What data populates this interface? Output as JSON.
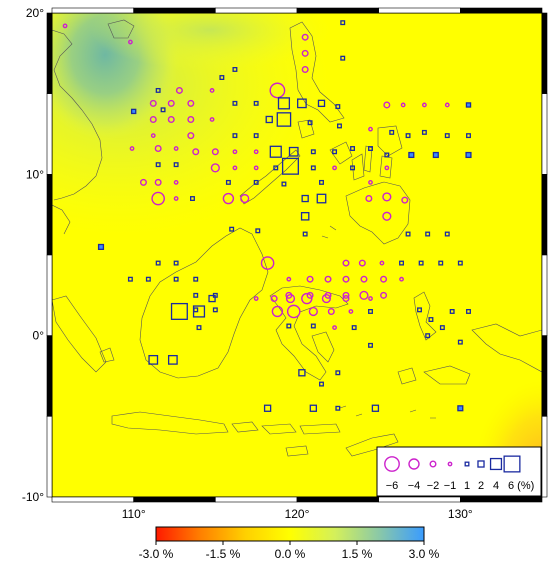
{
  "map": {
    "lon_range": [
      105,
      135
    ],
    "lat_range": [
      -10,
      20
    ],
    "lon_ticks": [
      {
        "value": 110,
        "label": "110°"
      },
      {
        "value": 120,
        "label": "120°"
      },
      {
        "value": 130,
        "label": "130°"
      }
    ],
    "lat_ticks": [
      {
        "value": 20,
        "label": "20°"
      },
      {
        "value": 10,
        "label": "10°"
      },
      {
        "value": 0,
        "label": "0°"
      },
      {
        "value": -10,
        "label": "-10°"
      }
    ],
    "field_colors": {
      "yellow": "#ffff00",
      "green": "#c6e85a",
      "teal": "#7bbf9c",
      "orange": "#ffcc22"
    },
    "positive_marker_color": "#1a2aa0",
    "negative_marker_color": "#cc22cc",
    "positive_marker_shape": "square",
    "negative_marker_shape": "circle"
  },
  "stations": [
    {
      "lon": 105.8,
      "lat": 19.2,
      "v": -1
    },
    {
      "lon": 109.8,
      "lat": 18.2,
      "v": -1
    },
    {
      "lon": 122.8,
      "lat": 19.4,
      "v": 1
    },
    {
      "lon": 120.5,
      "lat": 18.5,
      "v": -2
    },
    {
      "lon": 120.5,
      "lat": 17.5,
      "v": -2
    },
    {
      "lon": 120.5,
      "lat": 16.5,
      "v": -2
    },
    {
      "lon": 122.8,
      "lat": 17.2,
      "v": 1
    },
    {
      "lon": 116.2,
      "lat": 16.5,
      "v": 1
    },
    {
      "lon": 115.4,
      "lat": 16.0,
      "v": 1
    },
    {
      "lon": 112.8,
      "lat": 15.2,
      "v": -2
    },
    {
      "lon": 114.8,
      "lat": 15.2,
      "v": -1
    },
    {
      "lon": 118.8,
      "lat": 15.2,
      "v": -6
    },
    {
      "lon": 111.2,
      "lat": 14.4,
      "v": -2
    },
    {
      "lon": 112.3,
      "lat": 14.4,
      "v": -2
    },
    {
      "lon": 113.5,
      "lat": 14.4,
      "v": -2
    },
    {
      "lon": 111.5,
      "lat": 15.2,
      "v": 1
    },
    {
      "lon": 111.8,
      "lat": 14.0,
      "v": 1
    },
    {
      "lon": 110.0,
      "lat": 13.9,
      "v": 1.2
    },
    {
      "lon": 119.2,
      "lat": 14.4,
      "v": 4
    },
    {
      "lon": 120.3,
      "lat": 14.4,
      "v": 3
    },
    {
      "lon": 121.5,
      "lat": 14.4,
      "v": 2
    },
    {
      "lon": 117.5,
      "lat": 14.4,
      "v": 1
    },
    {
      "lon": 116.2,
      "lat": 14.4,
      "v": 1
    },
    {
      "lon": 122.5,
      "lat": 14.2,
      "v": 1
    },
    {
      "lon": 111.2,
      "lat": 13.4,
      "v": -2
    },
    {
      "lon": 112.3,
      "lat": 13.4,
      "v": -2
    },
    {
      "lon": 113.5,
      "lat": 13.4,
      "v": -2
    },
    {
      "lon": 114.8,
      "lat": 13.4,
      "v": -1
    },
    {
      "lon": 119.2,
      "lat": 13.4,
      "v": 5
    },
    {
      "lon": 118.3,
      "lat": 13.4,
      "v": 2
    },
    {
      "lon": 120.8,
      "lat": 13.2,
      "v": 1
    },
    {
      "lon": 122.6,
      "lat": 13.0,
      "v": 1
    },
    {
      "lon": 111.2,
      "lat": 12.4,
      "v": -1
    },
    {
      "lon": 113.5,
      "lat": 12.4,
      "v": -2
    },
    {
      "lon": 117.5,
      "lat": 12.4,
      "v": 1
    },
    {
      "lon": 116.2,
      "lat": 12.4,
      "v": 1
    },
    {
      "lon": 125.5,
      "lat": 14.3,
      "v": -2
    },
    {
      "lon": 126.5,
      "lat": 14.3,
      "v": -1
    },
    {
      "lon": 127.8,
      "lat": 14.3,
      "v": -1
    },
    {
      "lon": 129.2,
      "lat": 14.3,
      "v": -1
    },
    {
      "lon": 130.5,
      "lat": 14.3,
      "v": 1.2
    },
    {
      "lon": 124.5,
      "lat": 12.8,
      "v": -1
    },
    {
      "lon": 125.8,
      "lat": 12.6,
      "v": 1
    },
    {
      "lon": 127.8,
      "lat": 12.6,
      "v": 1
    },
    {
      "lon": 129.2,
      "lat": 12.4,
      "v": 1
    },
    {
      "lon": 130.5,
      "lat": 12.4,
      "v": 1
    },
    {
      "lon": 126.8,
      "lat": 12.4,
      "v": 1
    },
    {
      "lon": 124.5,
      "lat": 11.6,
      "v": 1
    },
    {
      "lon": 125.5,
      "lat": 11.2,
      "v": 1
    },
    {
      "lon": 127.0,
      "lat": 11.2,
      "v": 1.5
    },
    {
      "lon": 128.5,
      "lat": 11.2,
      "v": 1.5
    },
    {
      "lon": 130.5,
      "lat": 11.2,
      "v": 1.5
    },
    {
      "lon": 109.9,
      "lat": 11.6,
      "v": -1
    },
    {
      "lon": 111.5,
      "lat": 11.6,
      "v": -2
    },
    {
      "lon": 112.6,
      "lat": 11.6,
      "v": -1
    },
    {
      "lon": 113.8,
      "lat": 11.4,
      "v": -2
    },
    {
      "lon": 115.0,
      "lat": 11.4,
      "v": -2
    },
    {
      "lon": 116.2,
      "lat": 11.4,
      "v": -1
    },
    {
      "lon": 117.5,
      "lat": 11.4,
      "v": -1
    },
    {
      "lon": 118.7,
      "lat": 11.4,
      "v": 4
    },
    {
      "lon": 119.8,
      "lat": 11.4,
      "v": 3
    },
    {
      "lon": 121.0,
      "lat": 11.4,
      "v": 1
    },
    {
      "lon": 122.3,
      "lat": 11.4,
      "v": 1
    },
    {
      "lon": 123.4,
      "lat": 11.6,
      "v": 1
    },
    {
      "lon": 111.5,
      "lat": 10.6,
      "v": 1
    },
    {
      "lon": 112.6,
      "lat": 10.6,
      "v": 1
    },
    {
      "lon": 115.0,
      "lat": 10.4,
      "v": -3
    },
    {
      "lon": 116.2,
      "lat": 10.4,
      "v": -1
    },
    {
      "lon": 117.5,
      "lat": 10.4,
      "v": -1
    },
    {
      "lon": 118.7,
      "lat": 10.4,
      "v": 1
    },
    {
      "lon": 119.6,
      "lat": 10.5,
      "v": 6
    },
    {
      "lon": 121.0,
      "lat": 10.4,
      "v": 1
    },
    {
      "lon": 122.3,
      "lat": 10.4,
      "v": -1
    },
    {
      "lon": 123.4,
      "lat": 10.4,
      "v": 1
    },
    {
      "lon": 125.5,
      "lat": 10.4,
      "v": -1
    },
    {
      "lon": 110.6,
      "lat": 9.5,
      "v": -2
    },
    {
      "lon": 111.5,
      "lat": 9.5,
      "v": -2
    },
    {
      "lon": 112.6,
      "lat": 9.5,
      "v": -1
    },
    {
      "lon": 115.8,
      "lat": 9.5,
      "v": 1
    },
    {
      "lon": 117.5,
      "lat": 9.5,
      "v": 1
    },
    {
      "lon": 119.2,
      "lat": 9.4,
      "v": 1
    },
    {
      "lon": 121.5,
      "lat": 9.5,
      "v": 1
    },
    {
      "lon": 124.5,
      "lat": 9.5,
      "v": -1
    },
    {
      "lon": 111.5,
      "lat": 8.5,
      "v": -5
    },
    {
      "lon": 112.6,
      "lat": 8.5,
      "v": -1
    },
    {
      "lon": 113.6,
      "lat": 8.5,
      "v": 1
    },
    {
      "lon": 115.8,
      "lat": 8.5,
      "v": -4
    },
    {
      "lon": 116.8,
      "lat": 8.5,
      "v": -3
    },
    {
      "lon": 120.5,
      "lat": 8.5,
      "v": 2
    },
    {
      "lon": 121.5,
      "lat": 8.5,
      "v": 3
    },
    {
      "lon": 124.4,
      "lat": 8.5,
      "v": -2
    },
    {
      "lon": 125.5,
      "lat": 8.6,
      "v": -3
    },
    {
      "lon": 126.6,
      "lat": 8.4,
      "v": -2
    },
    {
      "lon": 125.5,
      "lat": 7.4,
      "v": -3
    },
    {
      "lon": 120.5,
      "lat": 7.4,
      "v": 2.5
    },
    {
      "lon": 116.0,
      "lat": 6.6,
      "v": 1
    },
    {
      "lon": 117.6,
      "lat": 6.5,
      "v": 1
    },
    {
      "lon": 120.5,
      "lat": 6.3,
      "v": 1
    },
    {
      "lon": 126.8,
      "lat": 6.3,
      "v": 1
    },
    {
      "lon": 128.0,
      "lat": 6.3,
      "v": 1
    },
    {
      "lon": 129.2,
      "lat": 6.3,
      "v": 1
    },
    {
      "lon": 108.0,
      "lat": 5.5,
      "v": 1.5
    },
    {
      "lon": 118.2,
      "lat": 4.5,
      "v": -5
    },
    {
      "lon": 123.0,
      "lat": 4.5,
      "v": -2
    },
    {
      "lon": 124.0,
      "lat": 4.5,
      "v": -2
    },
    {
      "lon": 125.2,
      "lat": 4.5,
      "v": -1
    },
    {
      "lon": 126.4,
      "lat": 4.5,
      "v": 1
    },
    {
      "lon": 127.6,
      "lat": 4.5,
      "v": 1
    },
    {
      "lon": 128.8,
      "lat": 4.5,
      "v": 1
    },
    {
      "lon": 130.0,
      "lat": 4.5,
      "v": 1
    },
    {
      "lon": 111.5,
      "lat": 4.5,
      "v": 1
    },
    {
      "lon": 112.6,
      "lat": 4.5,
      "v": 1
    },
    {
      "lon": 112.6,
      "lat": 3.5,
      "v": 1
    },
    {
      "lon": 113.8,
      "lat": 3.5,
      "v": 1
    },
    {
      "lon": 119.5,
      "lat": 3.5,
      "v": -1
    },
    {
      "lon": 120.8,
      "lat": 3.5,
      "v": -2
    },
    {
      "lon": 121.9,
      "lat": 3.5,
      "v": -2
    },
    {
      "lon": 123.0,
      "lat": 3.5,
      "v": -2
    },
    {
      "lon": 124.1,
      "lat": 3.5,
      "v": -2
    },
    {
      "lon": 125.3,
      "lat": 3.5,
      "v": -2
    },
    {
      "lon": 126.4,
      "lat": 3.5,
      "v": -1
    },
    {
      "lon": 109.8,
      "lat": 3.5,
      "v": 1
    },
    {
      "lon": 110.9,
      "lat": 3.5,
      "v": 1
    },
    {
      "lon": 113.8,
      "lat": 2.5,
      "v": 1
    },
    {
      "lon": 115.0,
      "lat": 2.5,
      "v": 1
    },
    {
      "lon": 119.5,
      "lat": 2.5,
      "v": -2
    },
    {
      "lon": 120.8,
      "lat": 2.5,
      "v": -2
    },
    {
      "lon": 121.9,
      "lat": 2.5,
      "v": -2
    },
    {
      "lon": 123.0,
      "lat": 2.5,
      "v": -2
    },
    {
      "lon": 124.1,
      "lat": 2.5,
      "v": -3
    },
    {
      "lon": 125.3,
      "lat": 2.5,
      "v": -2
    },
    {
      "lon": 113.8,
      "lat": 1.6,
      "v": 1
    },
    {
      "lon": 115.0,
      "lat": 1.6,
      "v": 1
    },
    {
      "lon": 114.8,
      "lat": 2.3,
      "v": 2
    },
    {
      "lon": 117.5,
      "lat": 2.3,
      "v": -1
    },
    {
      "lon": 118.6,
      "lat": 2.3,
      "v": -2
    },
    {
      "lon": 119.6,
      "lat": 2.3,
      "v": -3
    },
    {
      "lon": 120.6,
      "lat": 2.3,
      "v": -4
    },
    {
      "lon": 121.8,
      "lat": 2.3,
      "v": -3
    },
    {
      "lon": 123.0,
      "lat": 2.3,
      "v": -2
    },
    {
      "lon": 124.5,
      "lat": 2.3,
      "v": -1
    },
    {
      "lon": 118.8,
      "lat": 1.5,
      "v": -4
    },
    {
      "lon": 119.8,
      "lat": 1.5,
      "v": -5
    },
    {
      "lon": 121.0,
      "lat": 1.5,
      "v": -3
    },
    {
      "lon": 122.1,
      "lat": 1.5,
      "v": -2
    },
    {
      "lon": 123.3,
      "lat": 1.5,
      "v": -1
    },
    {
      "lon": 124.5,
      "lat": 1.5,
      "v": 1
    },
    {
      "lon": 112.8,
      "lat": 1.5,
      "v": 6
    },
    {
      "lon": 114.0,
      "lat": 1.5,
      "v": 4
    },
    {
      "lon": 114.0,
      "lat": 0.5,
      "v": 1
    },
    {
      "lon": 119.5,
      "lat": 0.6,
      "v": 1
    },
    {
      "lon": 121.0,
      "lat": 0.6,
      "v": 1
    },
    {
      "lon": 122.3,
      "lat": 0.5,
      "v": -1
    },
    {
      "lon": 123.5,
      "lat": 0.5,
      "v": 1
    },
    {
      "lon": 127.5,
      "lat": 1.6,
      "v": 1
    },
    {
      "lon": 128.2,
      "lat": 1.0,
      "v": 1
    },
    {
      "lon": 128.9,
      "lat": 0.5,
      "v": 1
    },
    {
      "lon": 129.5,
      "lat": 1.5,
      "v": 1
    },
    {
      "lon": 130.5,
      "lat": 1.5,
      "v": 1
    },
    {
      "lon": 128.0,
      "lat": 0.0,
      "v": 1
    },
    {
      "lon": 124.5,
      "lat": -0.6,
      "v": 1
    },
    {
      "lon": 130.0,
      "lat": -0.4,
      "v": 1
    },
    {
      "lon": 111.2,
      "lat": -1.5,
      "v": 3
    },
    {
      "lon": 112.4,
      "lat": -1.5,
      "v": 3
    },
    {
      "lon": 120.3,
      "lat": -2.3,
      "v": 2
    },
    {
      "lon": 122.5,
      "lat": -2.3,
      "v": 1
    },
    {
      "lon": 121.5,
      "lat": -3.0,
      "v": 1
    },
    {
      "lon": 118.2,
      "lat": -4.5,
      "v": 2
    },
    {
      "lon": 121.0,
      "lat": -4.5,
      "v": 2
    },
    {
      "lon": 122.5,
      "lat": -4.5,
      "v": 1
    },
    {
      "lon": 124.8,
      "lat": -4.5,
      "v": 2
    },
    {
      "lon": 130.0,
      "lat": -4.5,
      "v": 1.5
    }
  ],
  "legend": {
    "values": [
      -6,
      -4,
      -2,
      -1,
      1,
      2,
      4,
      6
    ],
    "labels": [
      "−6",
      "−4",
      "−2",
      "−1",
      "1",
      "2",
      "4",
      "6 (%)"
    ]
  },
  "colorbar": {
    "min": -3.0,
    "max": 3.0,
    "colors": [
      "#ff1a00",
      "#ff8000",
      "#ffd000",
      "#ffff00",
      "#d4f05a",
      "#8ac8a8",
      "#3a9cff"
    ],
    "ticks": [
      {
        "value": -3.0,
        "label": "-3.0 %"
      },
      {
        "value": -1.5,
        "label": "-1.5 %"
      },
      {
        "value": 0.0,
        "label": "0.0 %"
      },
      {
        "value": 1.5,
        "label": "1.5 %"
      },
      {
        "value": 3.0,
        "label": "3.0 %"
      }
    ]
  }
}
